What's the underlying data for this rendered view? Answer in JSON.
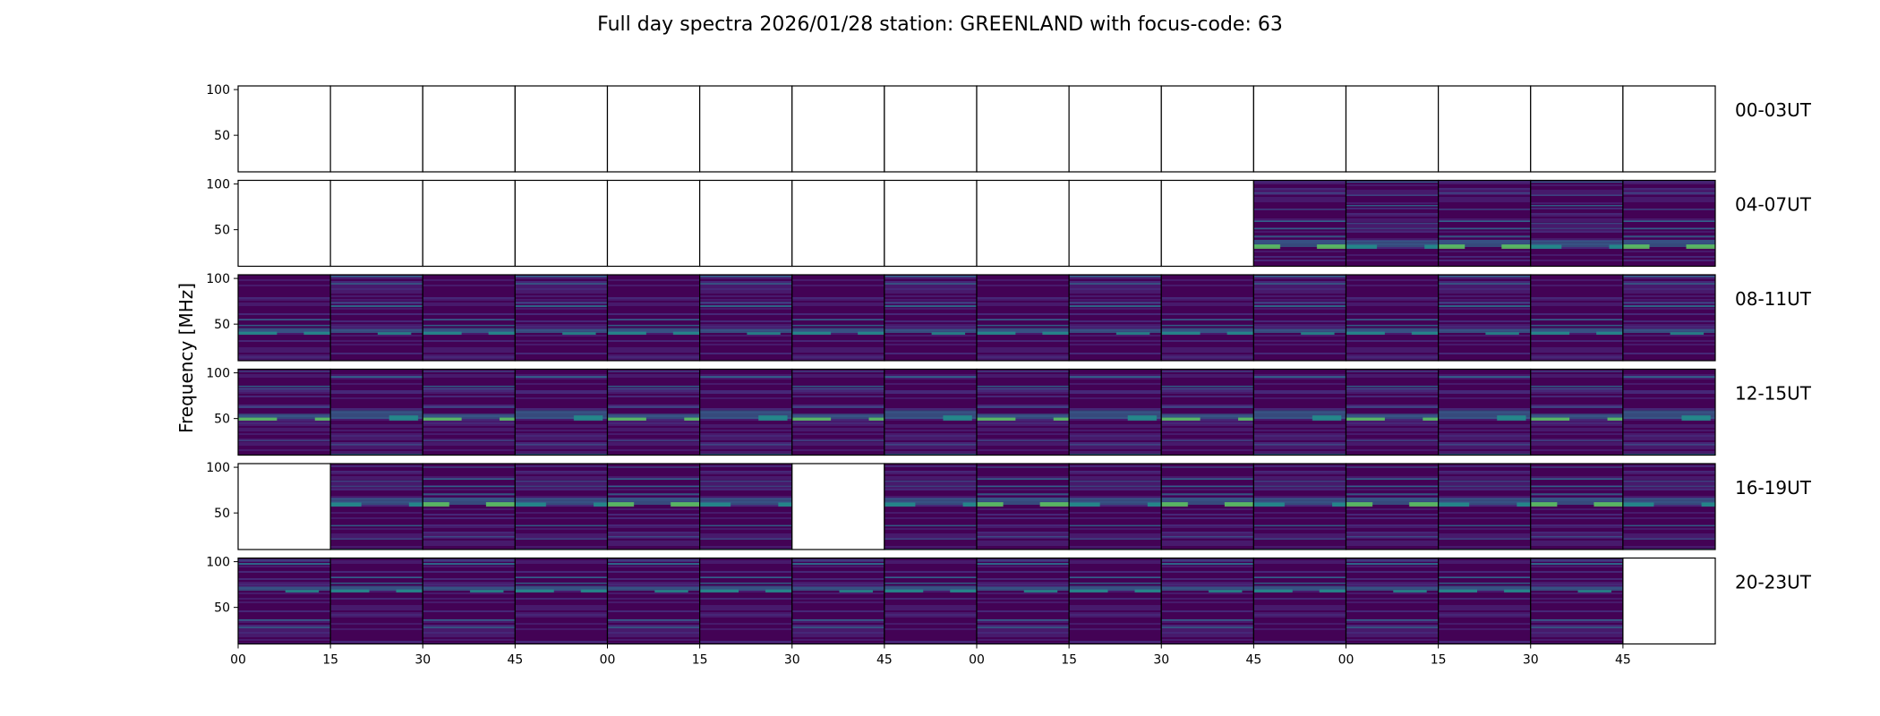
{
  "chart_data": {
    "type": "heatmap",
    "title": "Full day spectra 2026/01/28 station: GREENLAND with focus-code: 63",
    "ylabel": "Frequency [MHz]",
    "xlabel": "",
    "ylim": [
      10,
      104
    ],
    "y_ticks": [
      50,
      100
    ],
    "x_tick_labels": [
      "00",
      "15",
      "30",
      "45",
      "00",
      "15",
      "30",
      "45",
      "00",
      "15",
      "30",
      "45",
      "00",
      "15",
      "30",
      "45"
    ],
    "panels_per_row": 16,
    "minutes_per_panel": 15,
    "colormap": [
      "#440154",
      "#3b528b",
      "#21918c",
      "#5ec962",
      "#fde725"
    ],
    "rows": [
      {
        "label": "00-03UT",
        "has_data": [
          0,
          0,
          0,
          0,
          0,
          0,
          0,
          0,
          0,
          0,
          0,
          0,
          0,
          0,
          0,
          0
        ]
      },
      {
        "label": "04-07UT",
        "has_data": [
          0,
          0,
          0,
          0,
          0,
          0,
          0,
          0,
          0,
          0,
          0,
          1,
          1,
          1,
          1,
          1
        ]
      },
      {
        "label": "08-11UT",
        "has_data": [
          1,
          1,
          1,
          1,
          1,
          1,
          1,
          1,
          1,
          1,
          1,
          1,
          1,
          1,
          1,
          1
        ]
      },
      {
        "label": "12-15UT",
        "has_data": [
          1,
          1,
          1,
          1,
          1,
          1,
          1,
          1,
          1,
          1,
          1,
          1,
          1,
          1,
          1,
          1
        ]
      },
      {
        "label": "16-19UT",
        "has_data": [
          0,
          1,
          1,
          1,
          1,
          1,
          0,
          1,
          1,
          1,
          1,
          1,
          1,
          1,
          1,
          1
        ]
      },
      {
        "label": "20-23UT",
        "has_data": [
          1,
          1,
          1,
          1,
          1,
          1,
          1,
          1,
          1,
          1,
          1,
          1,
          1,
          1,
          1,
          0
        ]
      }
    ]
  }
}
